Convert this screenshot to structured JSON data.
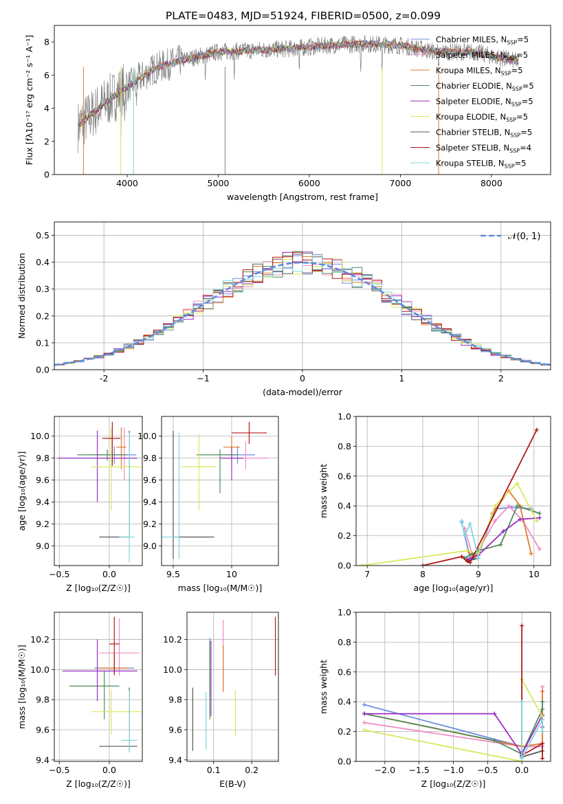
{
  "figure": {
    "title": "PLATE=0483, MJD=51924, FIBERID=0500, z=0.099"
  },
  "legend": [
    {
      "label": "Chabrier MILES, N",
      "sub": "SSP",
      "tail": "=5",
      "color": "#6b8ce0"
    },
    {
      "label": "Salpeter MILES, N",
      "sub": "SSP",
      "tail": "=5",
      "color": "#f08cc8"
    },
    {
      "label": "Kroupa MILES, N",
      "sub": "SSP",
      "tail": "=5",
      "color": "#e07a2a"
    },
    {
      "label": "Chabrier ELODIE, N",
      "sub": "SSP",
      "tail": "=5",
      "color": "#4f8a5c"
    },
    {
      "label": "Salpeter ELODIE, N",
      "sub": "SSP",
      "tail": "=5",
      "color": "#9a2ec0"
    },
    {
      "label": "Kroupa ELODIE, N",
      "sub": "SSP",
      "tail": "=5",
      "color": "#d8e85a"
    },
    {
      "label": "Chabrier STELIB, N",
      "sub": "SSP",
      "tail": "=5",
      "color": "#555555"
    },
    {
      "label": "Salpeter STELIB, N",
      "sub": "SSP",
      "tail": "=4",
      "color": "#b01818"
    },
    {
      "label": "Kroupa STELIB, N",
      "sub": "SSP",
      "tail": "=5",
      "color": "#7fd6dc"
    }
  ],
  "chart_data": [
    {
      "id": "spectrum",
      "type": "line",
      "xlabel": "wavelength [Angstrom, rest frame]",
      "ylabel": "Flux [fλ10⁻¹⁷ erg cm⁻² s⁻¹ A⁻¹]",
      "xlim": [
        3200,
        8650
      ],
      "ylim": [
        0,
        9
      ],
      "xticks": [
        4000,
        5000,
        6000,
        7000,
        8000
      ],
      "yticks": [
        0,
        2,
        4,
        6,
        8
      ],
      "x_start": 3460,
      "x_end_data": 8300,
      "envelope": {
        "x": [
          3460,
          3600,
          3800,
          4000,
          4300,
          4600,
          5000,
          5400,
          5800,
          6200,
          6600,
          7000,
          7400,
          7800,
          8300
        ],
        "y": [
          2.9,
          3.6,
          4.5,
          5.3,
          6.4,
          6.9,
          7.4,
          7.5,
          7.6,
          7.8,
          7.9,
          7.8,
          7.4,
          7.4,
          6.8
        ]
      },
      "absorption_lines": [
        3934,
        3969,
        4101,
        4861,
        5175,
        5890,
        6563,
        6800,
        7420
      ]
    },
    {
      "id": "residual_hist",
      "type": "bar",
      "xlabel": "(data-model)/error",
      "ylabel": "Normed distribution",
      "xlim": [
        -2.5,
        2.5
      ],
      "ylim": [
        0,
        0.55
      ],
      "xticks": [
        -2,
        -1,
        0,
        1,
        2
      ],
      "yticks": [
        0.0,
        0.1,
        0.2,
        0.3,
        0.4,
        0.5
      ],
      "bin_width": 0.1,
      "gaussian_label": "𝒩(0, 1)",
      "gaussian_color": "#5b8ae0"
    },
    {
      "id": "age_vs_Z",
      "type": "scatter",
      "xlabel": "Z [log₁₀(Z/Z☉)]",
      "ylabel": "age  [log₁₀(age/yr)]",
      "xlim": [
        -0.55,
        0.33
      ],
      "ylim": [
        8.82,
        10.18
      ],
      "xticks": [
        -0.5,
        0.0
      ],
      "yticks": [
        9.0,
        9.2,
        9.4,
        9.6,
        9.8,
        10.0
      ],
      "points": [
        {
          "x": 0.05,
          "y": 9.83,
          "ex": [
            -0.22,
            0.22
          ],
          "ey": [
            -0.08,
            0.08
          ],
          "c": "#6b8ce0"
        },
        {
          "x": 0.15,
          "y": 9.8,
          "ex": [
            -0.1,
            0.05
          ],
          "ey": [
            -0.2,
            0.28
          ],
          "c": "#f08cc8"
        },
        {
          "x": 0.12,
          "y": 9.9,
          "ex": [
            -0.05,
            0.05
          ],
          "ey": [
            -0.2,
            0.18
          ],
          "c": "#e07a2a"
        },
        {
          "x": -0.02,
          "y": 9.83,
          "ex": [
            -0.3,
            0.2
          ],
          "ey": [
            -0.05,
            0.05
          ],
          "c": "#4f8a5c"
        },
        {
          "x": -0.12,
          "y": 9.8,
          "ex": [
            -0.4,
            0.4
          ],
          "ey": [
            -0.4,
            0.25
          ],
          "c": "#9a2ec0"
        },
        {
          "x": 0.02,
          "y": 9.72,
          "ex": [
            -0.2,
            0.3
          ],
          "ey": [
            -0.4,
            0.35
          ],
          "c": "#d8e85a"
        },
        {
          "x": 0.2,
          "y": 9.08,
          "ex": [
            -0.3,
            0.0
          ],
          "ey": [
            -0.0,
            0.97
          ],
          "c": "#555555"
        },
        {
          "x": 0.03,
          "y": 9.98,
          "ex": [
            -0.1,
            0.08
          ],
          "ey": [
            -0.25,
            0.15
          ],
          "c": "#b01818"
        },
        {
          "x": 0.2,
          "y": 9.08,
          "ex": [
            -0.1,
            0.05
          ],
          "ey": [
            -0.23,
            0.95
          ],
          "c": "#7fd6dc"
        }
      ]
    },
    {
      "id": "age_vs_mass",
      "type": "scatter",
      "xlabel": "mass [log₁₀(M/M☉)]",
      "ylabel": "",
      "xlim": [
        9.4,
        10.4
      ],
      "ylim": [
        8.82,
        10.18
      ],
      "xticks": [
        9.5,
        10.0
      ],
      "yticks": [
        9.0,
        9.2,
        9.4,
        9.6,
        9.8,
        10.0
      ],
      "points": [
        {
          "x": 10.05,
          "y": 9.83,
          "ex": [
            -0.15,
            0.15
          ],
          "ey": [
            -0.08,
            0.08
          ],
          "c": "#6b8ce0"
        },
        {
          "x": 10.12,
          "y": 9.8,
          "ex": [
            -0.1,
            0.2
          ],
          "ey": [
            -0.1,
            0.15
          ],
          "c": "#f08cc8"
        },
        {
          "x": 10.0,
          "y": 9.9,
          "ex": [
            -0.07,
            0.07
          ],
          "ey": [
            -0.15,
            0.1
          ],
          "c": "#e07a2a"
        },
        {
          "x": 9.9,
          "y": 9.83,
          "ex": [
            -0.2,
            0.15
          ],
          "ey": [
            -0.35,
            0.05
          ],
          "c": "#4f8a5c"
        },
        {
          "x": 10.0,
          "y": 9.8,
          "ex": [
            -0.1,
            0.1
          ],
          "ey": [
            -0.2,
            0.1
          ],
          "c": "#9a2ec0"
        },
        {
          "x": 9.72,
          "y": 9.72,
          "ex": [
            -0.15,
            0.15
          ],
          "ey": [
            -0.4,
            0.3
          ],
          "c": "#d8e85a"
        },
        {
          "x": 9.5,
          "y": 9.08,
          "ex": [
            -0.0,
            0.35
          ],
          "ey": [
            -0.2,
            0.97
          ],
          "c": "#555555"
        },
        {
          "x": 10.15,
          "y": 10.03,
          "ex": [
            -0.15,
            0.15
          ],
          "ey": [
            -0.1,
            0.1
          ],
          "c": "#b01818"
        },
        {
          "x": 9.55,
          "y": 9.08,
          "ex": [
            -0.15,
            0.0
          ],
          "ey": [
            -0.2,
            0.95
          ],
          "c": "#7fd6dc"
        }
      ]
    },
    {
      "id": "weight_vs_age",
      "type": "line",
      "xlabel": "age  [log₁₀(age/yr)]",
      "ylabel": "mass weight",
      "xlim": [
        6.8,
        10.3
      ],
      "ylim": [
        0,
        1.0
      ],
      "xticks": [
        7,
        8,
        9,
        10
      ],
      "yticks": [
        0.0,
        0.2,
        0.4,
        0.6,
        0.8,
        1.0
      ],
      "series": [
        {
          "c": "#6b8ce0",
          "x": [
            8.7,
            8.85,
            9.0,
            9.3,
            9.6,
            9.95
          ],
          "y": [
            0.29,
            0.05,
            0.07,
            0.38,
            0.39,
            0.38
          ]
        },
        {
          "c": "#f08cc8",
          "x": [
            8.75,
            8.9,
            9.0,
            9.3,
            9.55,
            9.8,
            10.1
          ],
          "y": [
            0.25,
            0.06,
            0.1,
            0.3,
            0.4,
            0.3,
            0.11
          ]
        },
        {
          "c": "#e07a2a",
          "x": [
            8.8,
            8.9,
            9.0,
            9.25,
            9.55,
            9.75,
            9.95
          ],
          "y": [
            0.1,
            0.06,
            0.08,
            0.35,
            0.5,
            0.4,
            0.08
          ]
        },
        {
          "c": "#4f8a5c",
          "x": [
            8.75,
            8.9,
            9.0,
            9.4,
            9.7,
            10.1
          ],
          "y": [
            0.05,
            0.08,
            0.1,
            0.14,
            0.4,
            0.35
          ]
        },
        {
          "c": "#9a2ec0",
          "x": [
            8.8,
            8.9,
            9.0,
            9.45,
            9.75,
            10.1
          ],
          "y": [
            0.04,
            0.05,
            0.07,
            0.23,
            0.31,
            0.32
          ]
        },
        {
          "c": "#d8e85a",
          "x": [
            6.9,
            8.8,
            9.0,
            9.3,
            9.7,
            10.05
          ],
          "y": [
            0.0,
            0.1,
            0.08,
            0.4,
            0.55,
            0.3
          ]
        },
        {
          "c": "#555555",
          "x": [
            8.8,
            9.0
          ],
          "y": [
            0.03,
            0.05
          ]
        },
        {
          "c": "#b01818",
          "x": [
            8.0,
            8.7,
            8.8,
            8.85,
            10.05
          ],
          "y": [
            0.0,
            0.06,
            0.03,
            0.02,
            0.91
          ]
        },
        {
          "c": "#7fd6dc",
          "x": [
            8.7,
            8.75,
            8.85,
            9.0
          ],
          "y": [
            0.3,
            0.2,
            0.28,
            0.05
          ]
        }
      ]
    },
    {
      "id": "mass_vs_Z",
      "type": "scatter",
      "xlabel": "Z [log₁₀(Z/Z☉)]",
      "ylabel": "mass [log₁₀(M/M☉)]",
      "xlim": [
        -0.55,
        0.33
      ],
      "ylim": [
        9.39,
        10.38
      ],
      "xticks": [
        -0.5,
        0.0
      ],
      "yticks": [
        9.4,
        9.6,
        9.8,
        10.0,
        10.2
      ],
      "points": [
        {
          "x": 0.05,
          "y": 10.01,
          "ex": [
            -0.2,
            0.2
          ],
          "ey": [
            -0.05,
            0.05
          ],
          "c": "#6b8ce0"
        },
        {
          "x": 0.1,
          "y": 10.11,
          "ex": [
            -0.2,
            0.2
          ],
          "ey": [
            -0.15,
            0.23
          ],
          "c": "#f08cc8"
        },
        {
          "x": 0.05,
          "y": 10.01,
          "ex": [
            -0.15,
            0.15
          ],
          "ey": [
            -0.05,
            0.1
          ],
          "c": "#e07a2a"
        },
        {
          "x": -0.05,
          "y": 9.89,
          "ex": [
            -0.35,
            0.15
          ],
          "ey": [
            -0.22,
            0.1
          ],
          "c": "#4f8a5c"
        },
        {
          "x": -0.12,
          "y": 9.99,
          "ex": [
            -0.35,
            0.4
          ],
          "ey": [
            -0.2,
            0.21
          ],
          "c": "#9a2ec0"
        },
        {
          "x": 0.02,
          "y": 9.72,
          "ex": [
            -0.2,
            0.3
          ],
          "ey": [
            -0.15,
            0.15
          ],
          "c": "#d8e85a"
        },
        {
          "x": 0.2,
          "y": 9.49,
          "ex": [
            -0.3,
            0.08
          ],
          "ey": [
            -0.04,
            0.39
          ],
          "c": "#555555"
        },
        {
          "x": 0.05,
          "y": 10.17,
          "ex": [
            -0.05,
            0.05
          ],
          "ey": [
            -0.2,
            0.18
          ],
          "c": "#b01818"
        },
        {
          "x": 0.2,
          "y": 9.53,
          "ex": [
            -0.08,
            0.08
          ],
          "ey": [
            -0.08,
            0.33
          ],
          "c": "#7fd6dc"
        }
      ]
    },
    {
      "id": "mass_vs_ebv",
      "type": "scatter",
      "xlabel": "E(B-V)",
      "ylabel": "",
      "xlim": [
        0.03,
        0.27
      ],
      "ylim": [
        9.39,
        10.38
      ],
      "xticks": [
        0.1,
        0.2
      ],
      "yticks": [
        9.4,
        9.6,
        9.8,
        10.0,
        10.2
      ],
      "points": [
        {
          "x": 0.09,
          "y": 10.01,
          "ey": [
            -0.2,
            0.2
          ],
          "c": "#6b8ce0"
        },
        {
          "x": 0.125,
          "y": 10.11,
          "ey": [
            -0.23,
            0.22
          ],
          "c": "#f08cc8"
        },
        {
          "x": 0.125,
          "y": 10.01,
          "ey": [
            -0.16,
            0.15
          ],
          "c": "#e07a2a"
        },
        {
          "x": 0.09,
          "y": 9.89,
          "ey": [
            -0.22,
            0.3
          ],
          "c": "#4f8a5c"
        },
        {
          "x": 0.093,
          "y": 9.99,
          "ey": [
            -0.3,
            0.2
          ],
          "c": "#9a2ec0"
        },
        {
          "x": 0.157,
          "y": 9.72,
          "ey": [
            -0.16,
            0.14
          ],
          "c": "#d8e85a"
        },
        {
          "x": 0.045,
          "y": 9.7,
          "ey": [
            -0.24,
            0.18
          ],
          "c": "#555555"
        },
        {
          "x": 0.262,
          "y": 10.16,
          "ey": [
            -0.2,
            0.19
          ],
          "c": "#b01818"
        },
        {
          "x": 0.08,
          "y": 9.67,
          "ey": [
            -0.2,
            0.18
          ],
          "c": "#7fd6dc"
        }
      ]
    },
    {
      "id": "weight_vs_Z",
      "type": "line",
      "xlabel": "Z [log₁₀(Z/Z☉)]",
      "ylabel": "mass weight",
      "xlim": [
        -2.42,
        0.42
      ],
      "ylim": [
        0,
        1.0
      ],
      "xticks": [
        -2.0,
        -1.5,
        -1.0,
        -0.5,
        0.0
      ],
      "yticks": [
        0.0,
        0.2,
        0.4,
        0.6,
        0.8,
        1.0
      ],
      "series": [
        {
          "c": "#6b8ce0",
          "x": [
            -2.3,
            0.0,
            0.3,
            0.3
          ],
          "y": [
            0.38,
            0.1,
            0.1,
            0.3
          ]
        },
        {
          "c": "#f08cc8",
          "x": [
            -2.3,
            0.0,
            0.3,
            0.3
          ],
          "y": [
            0.26,
            0.1,
            0.1,
            0.5
          ]
        },
        {
          "c": "#e07a2a",
          "x": [
            -2.3,
            0.0,
            0.3,
            0.3
          ],
          "y": [
            0.32,
            0.1,
            0.12,
            0.47
          ]
        },
        {
          "c": "#4f8a5c",
          "x": [
            -2.3,
            -0.4,
            0.0,
            0.3,
            0.3
          ],
          "y": [
            0.32,
            0.14,
            0.05,
            0.35,
            0.4
          ]
        },
        {
          "c": "#9a2ec0",
          "x": [
            -2.3,
            -0.4,
            0.0,
            0.3,
            0.3
          ],
          "y": [
            0.32,
            0.32,
            0.05,
            0.31,
            0.23
          ]
        },
        {
          "c": "#d8e85a",
          "x": [
            -2.3,
            0.0,
            0.0,
            0.3
          ],
          "y": [
            0.21,
            0.0,
            0.55,
            0.3
          ]
        },
        {
          "c": "#555555",
          "x": [
            0.0,
            0.3
          ],
          "y": [
            0.03,
            0.07
          ]
        },
        {
          "c": "#b01818",
          "x": [
            0.0,
            0.0,
            0.3,
            0.3
          ],
          "y": [
            0.91,
            0.04,
            0.12,
            0.02
          ]
        },
        {
          "c": "#7fd6dc",
          "x": [
            0.0,
            0.0,
            0.3,
            0.3
          ],
          "y": [
            0.4,
            0.02,
            0.28,
            0.2
          ]
        }
      ]
    }
  ]
}
